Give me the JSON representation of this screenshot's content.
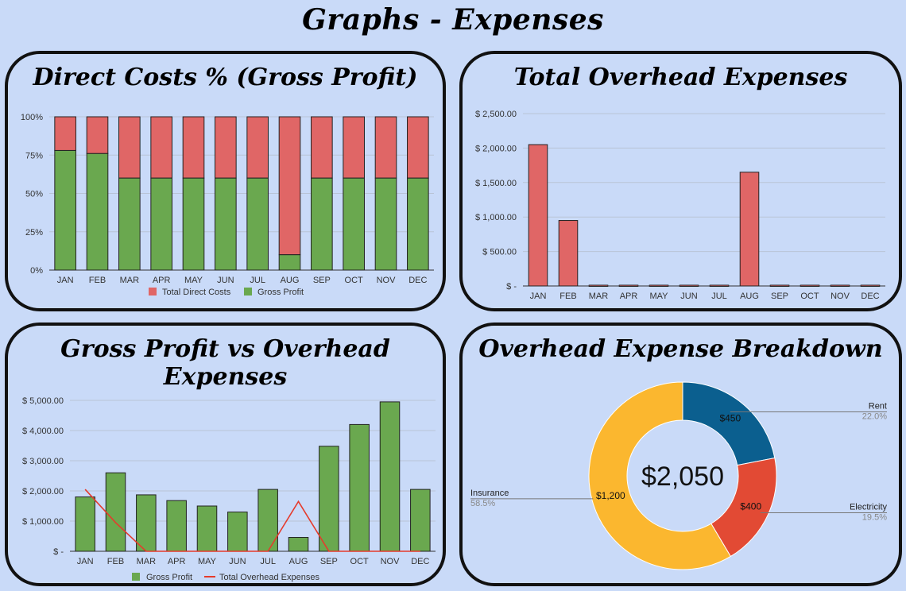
{
  "page": {
    "title": "Graphs - Expenses"
  },
  "colors": {
    "red": "#e06666",
    "green": "#6aa84f",
    "line_red": "#e53b2c",
    "rent": "#0b5f8f",
    "electricity": "#e24a34",
    "insurance": "#fbb72f",
    "grid": "#b9c4d6",
    "stroke": "#222222"
  },
  "chart_data": [
    {
      "type": "bar",
      "stacked": true,
      "title": "Direct Costs % (Gross Profit)",
      "categories": [
        "JAN",
        "FEB",
        "MAR",
        "APR",
        "MAY",
        "JUN",
        "JUL",
        "AUG",
        "SEP",
        "OCT",
        "NOV",
        "DEC"
      ],
      "yticks": [
        "0%",
        "25%",
        "50%",
        "75%",
        "100%"
      ],
      "ylim": [
        0,
        100
      ],
      "series": [
        {
          "name": "Gross Profit",
          "values": [
            78,
            76,
            60,
            60,
            60,
            60,
            60,
            10,
            60,
            60,
            60,
            60
          ]
        },
        {
          "name": "Total Direct Costs",
          "values": [
            22,
            24,
            40,
            40,
            40,
            40,
            40,
            90,
            40,
            40,
            40,
            40
          ]
        }
      ],
      "legend": [
        "Total Direct Costs",
        "Gross Profit"
      ],
      "legend_position": "bottom",
      "grid": true
    },
    {
      "type": "bar",
      "title": "Total Overhead Expenses",
      "categories": [
        "JAN",
        "FEB",
        "MAR",
        "APR",
        "MAY",
        "JUN",
        "JUL",
        "AUG",
        "SEP",
        "OCT",
        "NOV",
        "DEC"
      ],
      "yticks": [
        "$ -",
        "$ 500.00",
        "$ 1,000.00",
        "$ 1,500.00",
        "$ 2,000.00",
        "$ 2,500.00"
      ],
      "ylim": [
        0,
        2500
      ],
      "values": [
        2050,
        950,
        0,
        0,
        0,
        0,
        0,
        1650,
        0,
        0,
        0,
        0
      ],
      "grid": true
    },
    {
      "type": "bar",
      "title": "Gross Profit vs Overhead Expenses",
      "categories": [
        "JAN",
        "FEB",
        "MAR",
        "APR",
        "MAY",
        "JUN",
        "JUL",
        "AUG",
        "SEP",
        "OCT",
        "NOV",
        "DEC"
      ],
      "yticks": [
        "$ -",
        "$ 1,000.00",
        "$ 2,000.00",
        "$ 3,000.00",
        "$ 4,000.00",
        "$ 5,000.00"
      ],
      "ylim": [
        0,
        5000
      ],
      "series": [
        {
          "name": "Gross Profit",
          "type": "bar",
          "values": [
            1800,
            2600,
            1870,
            1680,
            1500,
            1300,
            2050,
            460,
            3480,
            4200,
            4950,
            2050
          ]
        },
        {
          "name": "Total Overhead Expenses",
          "type": "line",
          "values": [
            2050,
            950,
            0,
            0,
            0,
            0,
            0,
            1650,
            0,
            0,
            0,
            0
          ]
        }
      ],
      "legend": [
        "Gross Profit",
        "Total Overhead Expenses"
      ],
      "legend_position": "bottom",
      "grid": true
    },
    {
      "type": "pie",
      "donut": true,
      "title": "Overhead Expense Breakdown",
      "center_label": "$2,050",
      "slices": [
        {
          "name": "Rent",
          "value": 450,
          "value_label": "$450",
          "percent": "22.0%"
        },
        {
          "name": "Electricity",
          "value": 400,
          "value_label": "$400",
          "percent": "19.5%"
        },
        {
          "name": "Insurance",
          "value": 1200,
          "value_label": "$1,200",
          "percent": "58.5%"
        }
      ]
    }
  ]
}
